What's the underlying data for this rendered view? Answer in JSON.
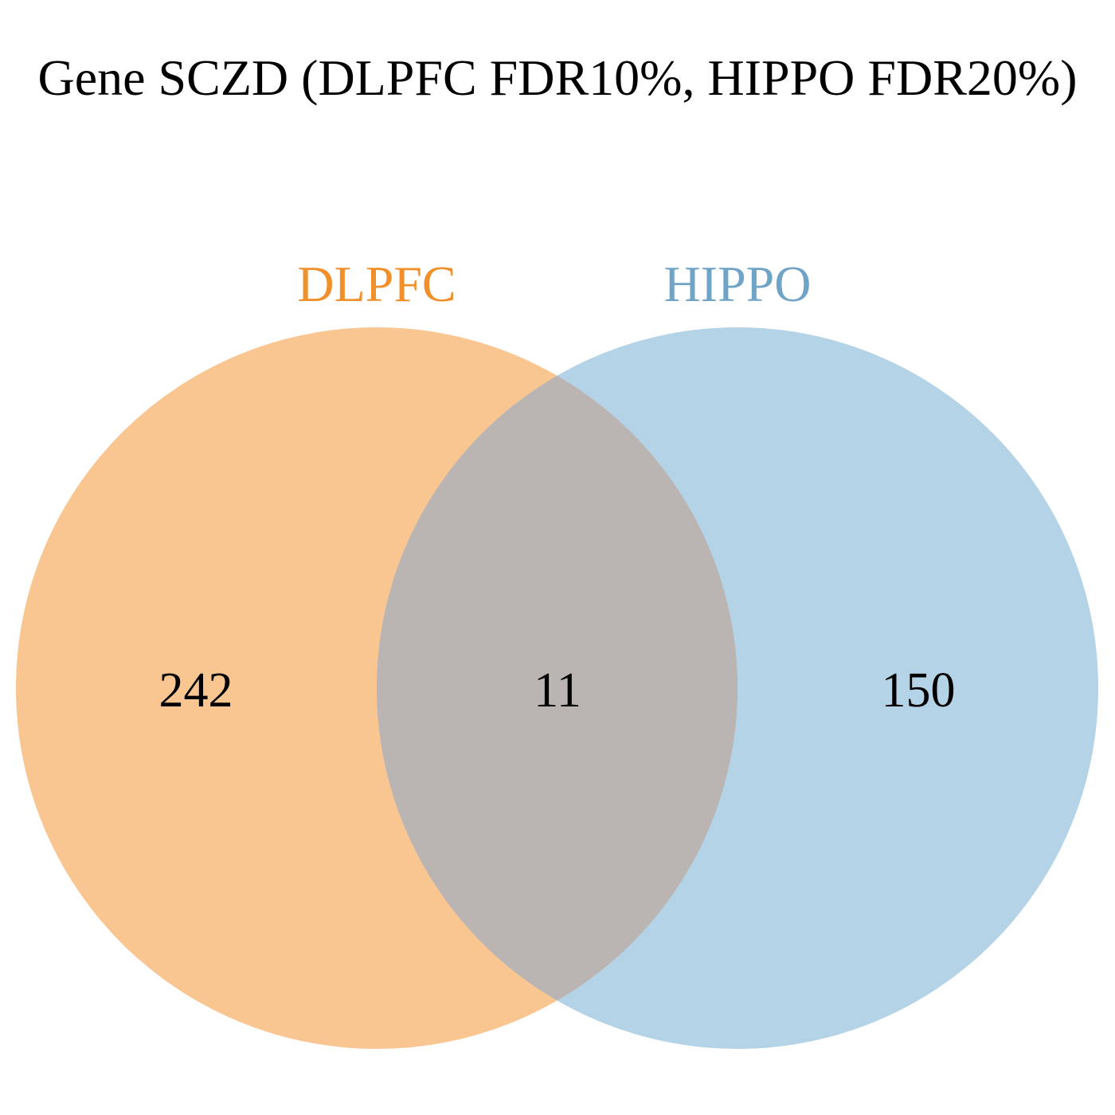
{
  "title": "Gene SCZD (DLPFC FDR10%, HIPPO FDR20%)",
  "sets": [
    {
      "name": "DLPFC",
      "color": "#F0902A",
      "fill": "#F9C691",
      "only_count": "242"
    },
    {
      "name": "HIPPO",
      "color": "#6FA4C7",
      "fill": "#B4D3E6",
      "only_count": "150"
    }
  ],
  "intersection": {
    "count": "11",
    "fill": "#BAB5B2"
  }
}
